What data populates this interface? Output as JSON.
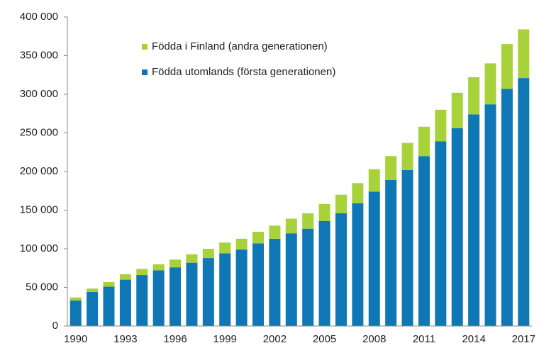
{
  "chart_data": {
    "type": "stacked_bar",
    "categories": [
      "1990",
      null,
      null,
      "1993",
      null,
      null,
      "1996",
      null,
      null,
      "1999",
      null,
      null,
      "2002",
      null,
      null,
      "2005",
      null,
      null,
      "2008",
      null,
      null,
      "2011",
      null,
      null,
      "2014",
      null,
      null,
      "2017"
    ],
    "series": [
      {
        "name": "Födda utomlands (första generationen)",
        "color": "#0f77b5",
        "values": [
          33000,
          44000,
          51000,
          60000,
          66000,
          72000,
          76000,
          82000,
          88000,
          94000,
          99000,
          107000,
          113000,
          120000,
          126000,
          136000,
          146000,
          159000,
          174000,
          189000,
          202000,
          220000,
          239000,
          256000,
          274000,
          287000,
          307000,
          321000
        ]
      },
      {
        "name": "Födda i Finland (andra generationen)",
        "color": "#a8d23a",
        "values": [
          4000,
          4500,
          6000,
          7000,
          8000,
          8000,
          10000,
          11000,
          12000,
          14000,
          14000,
          15000,
          17000,
          19000,
          20000,
          22000,
          24000,
          26000,
          29000,
          31000,
          35000,
          38000,
          41000,
          46000,
          48000,
          53000,
          58000,
          63000
        ]
      }
    ],
    "ylim": [
      0,
      400000
    ],
    "yticks": [
      0,
      {
        "value": 50000,
        "label": "50 000"
      },
      {
        "value": 100000,
        "label": "100 000"
      },
      {
        "value": 150000,
        "label": "150 000"
      },
      {
        "value": 200000,
        "label": "200 000"
      },
      {
        "value": 250000,
        "label": "250 000"
      },
      {
        "value": 300000,
        "label": "300 000"
      },
      {
        "value": 350000,
        "label": "350 000"
      },
      {
        "value": 400000,
        "label": "400 000"
      }
    ],
    "legend": "top-left"
  }
}
